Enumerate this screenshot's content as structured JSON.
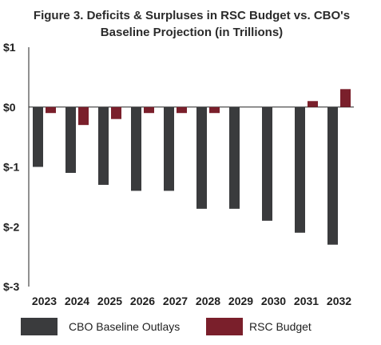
{
  "chart_data": {
    "type": "bar",
    "title_lines": [
      "Figure 3. Deficits & Surpluses in RSC Budget vs. CBO's",
      "Baseline Projection (in Trillions)"
    ],
    "categories": [
      "2023",
      "2024",
      "2025",
      "2026",
      "2027",
      "2028",
      "2029",
      "2030",
      "2031",
      "2032"
    ],
    "series": [
      {
        "name": "CBO Baseline Outlays",
        "color": "#3a3b3d",
        "values": [
          -1.0,
          -1.1,
          -1.3,
          -1.4,
          -1.4,
          -1.7,
          -1.7,
          -1.9,
          -2.1,
          -2.3
        ]
      },
      {
        "name": "RSC Budget",
        "color": "#7a1f2b",
        "values": [
          -0.1,
          -0.3,
          -0.2,
          -0.1,
          -0.1,
          -0.1,
          0.0,
          0.0,
          0.1,
          0.3
        ]
      }
    ],
    "ylim": [
      -3,
      1
    ],
    "yticks": [
      1,
      0,
      -1,
      -2,
      -3
    ],
    "ytick_labels": [
      "$1",
      "$0",
      "$-1",
      "$-2",
      "$-3"
    ],
    "legend_position": "bottom",
    "grid": false,
    "xlabel": "",
    "ylabel": ""
  },
  "colors": {
    "axis": "#222222",
    "zero_line": "#222222"
  }
}
